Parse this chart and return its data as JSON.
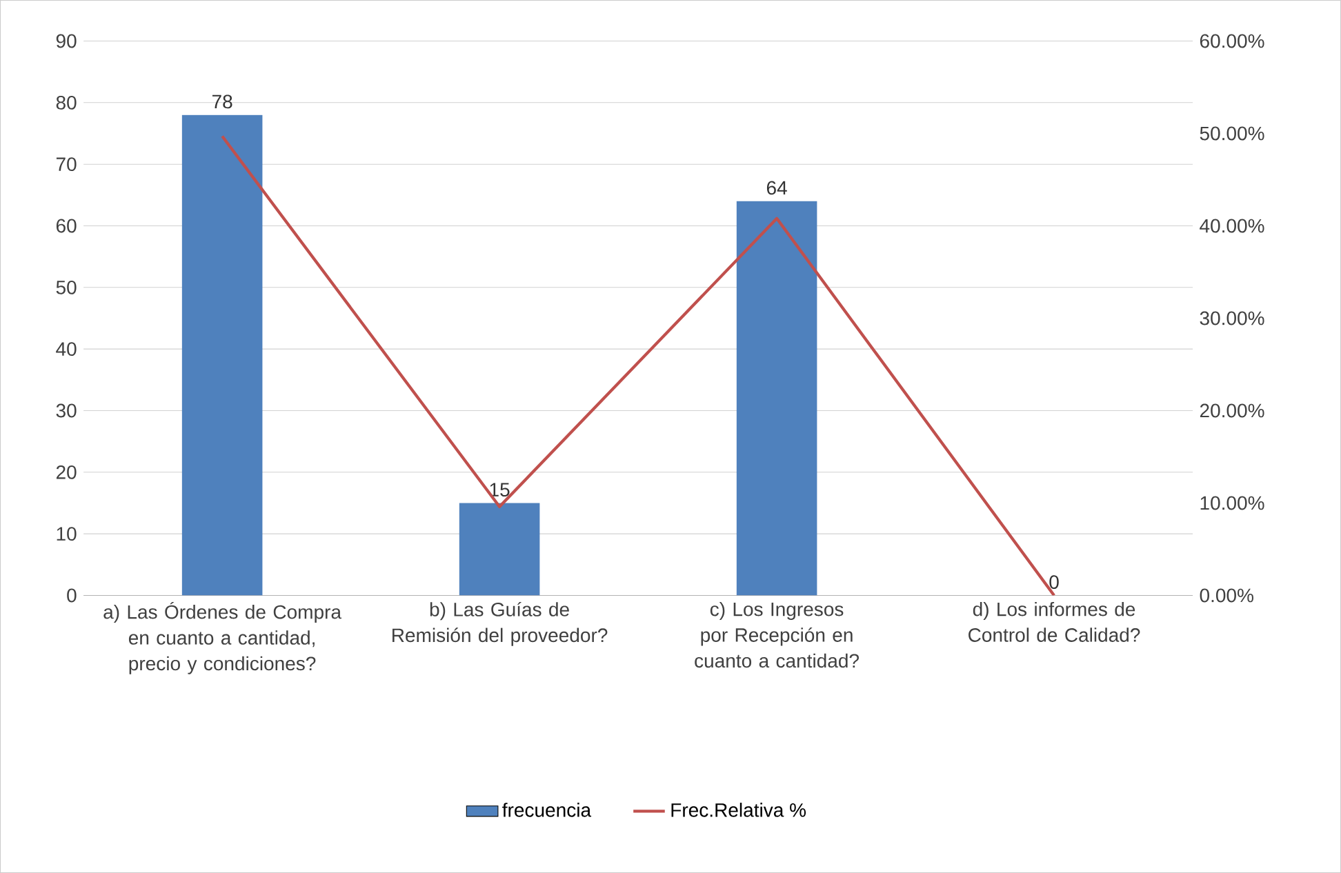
{
  "chart_data": {
    "type": "bar",
    "categories": [
      "a) Las Órdenes de Compra en cuanto a cantidad, precio y condiciones?",
      "b) Las Guías de Remisión del proveedor?",
      "c) Los Ingresos por Recepción en cuanto a cantidad?",
      "d) Los informes de Control de Calidad?"
    ],
    "series": [
      {
        "name": "frecuencia",
        "color": "#4f81bd",
        "values": [
          78,
          15,
          64,
          0
        ],
        "value_labels": [
          "78",
          "15",
          "64",
          "0"
        ]
      },
      {
        "name": "Frec.Relativa %",
        "type": "line",
        "axis": "y2",
        "color": "#c0504d",
        "values": [
          49.7,
          9.6,
          40.8,
          0
        ]
      }
    ],
    "ylim": [
      0,
      90
    ],
    "yticks": [
      0,
      10,
      20,
      30,
      40,
      50,
      60,
      70,
      80,
      90
    ],
    "y2lim": [
      0,
      60
    ],
    "y2ticks": [
      {
        "value": 0,
        "label": "0.00%"
      },
      {
        "value": 10,
        "label": "10.00%"
      },
      {
        "value": 20,
        "label": "20.00%"
      },
      {
        "value": 30,
        "label": "30.00%"
      },
      {
        "value": 40,
        "label": "40.00%"
      },
      {
        "value": 50,
        "label": "50.00%"
      },
      {
        "value": 60,
        "label": "60.00%"
      }
    ],
    "grid": "y",
    "legend": "bottom",
    "marker": "none",
    "line_style": "solid"
  }
}
